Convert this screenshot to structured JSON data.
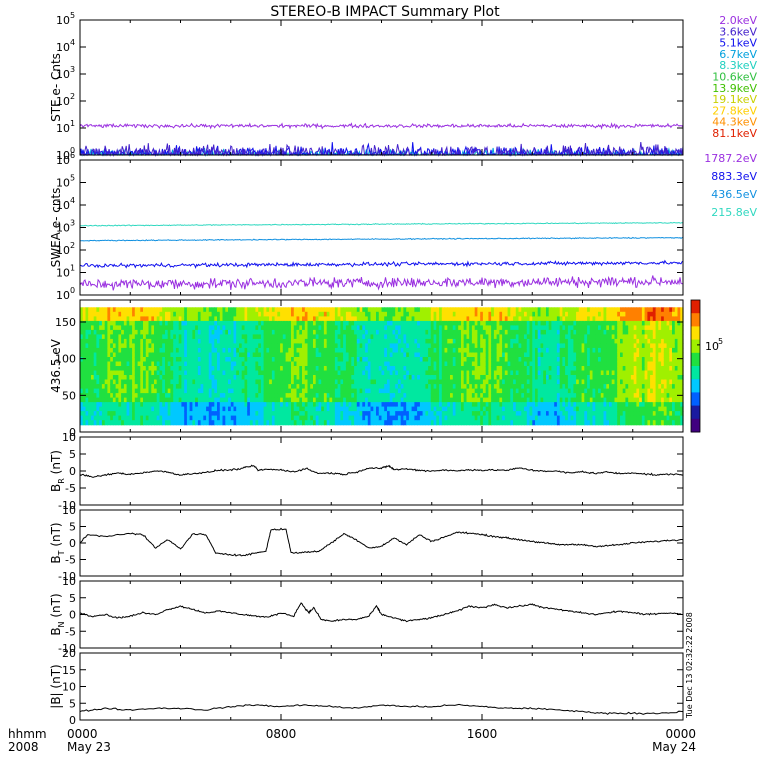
{
  "title": "STEREO-B IMPACT Summary Plot",
  "timestamp": "Tue Dec 13 02:32:22 2008",
  "x_axis": {
    "row1_label": "hhmm",
    "row2_label": "2008",
    "ticks": [
      {
        "hour": 0,
        "hhmm": "0000",
        "date": "May 23"
      },
      {
        "hour": 8,
        "hhmm": "0800",
        "date": ""
      },
      {
        "hour": 16,
        "hhmm": "1600",
        "date": ""
      },
      {
        "hour": 24,
        "hhmm": "0000",
        "date": "May 24"
      }
    ]
  },
  "colors": {
    "ste_spectrogram": "rainbow",
    "field_line": "#000000"
  },
  "chart_data": [
    {
      "id": "ste",
      "type": "line",
      "ylabel": "STE e- Cnts",
      "yscale": "log",
      "ylim": [
        1,
        100000
      ],
      "ytick_exponents": [
        0,
        1,
        2,
        3,
        4,
        5
      ],
      "ytick_base": "10",
      "series": [
        {
          "name": "2.0keV",
          "color": "#9a30e0",
          "level": 12,
          "noise": 0.1
        },
        {
          "name": "3.6keV",
          "color": "#4422cc",
          "level": 1.2,
          "noise": 0.45
        },
        {
          "name": "5.1keV",
          "color": "#1010ee",
          "level": 1.1,
          "noise": 0.45
        },
        {
          "name": "6.7keV",
          "color": "#00a0dd",
          "level": 1.0,
          "noise": 0.3
        },
        {
          "name": "8.3keV",
          "color": "#20d0c0",
          "level": 1.0,
          "noise": 0.2
        },
        {
          "name": "10.6keV",
          "color": "#30c040",
          "level": 1.0,
          "noise": 0.0
        },
        {
          "name": "13.9keV",
          "color": "#40c000",
          "level": 1.0,
          "noise": 0.0
        },
        {
          "name": "19.1keV",
          "color": "#c8d000",
          "level": 1.0,
          "noise": 0.0
        },
        {
          "name": "27.8keV",
          "color": "#ffd000",
          "level": 1.0,
          "noise": 0.0
        },
        {
          "name": "44.3keV",
          "color": "#ff9000",
          "level": 1.0,
          "noise": 0.0
        },
        {
          "name": "81.1keV",
          "color": "#e02000",
          "level": 1.0,
          "noise": 0.0
        }
      ]
    },
    {
      "id": "swea",
      "type": "line",
      "ylabel": "SWEA e- cnts",
      "yscale": "log",
      "ylim": [
        1,
        1000000
      ],
      "ytick_exponents": [
        0,
        1,
        2,
        3,
        4,
        5,
        6
      ],
      "ytick_base": "10",
      "series": [
        {
          "name": "1787.2eV",
          "color": "#9a30e0",
          "level": 3,
          "noise": 0.35
        },
        {
          "name": "883.3eV",
          "color": "#1010ee",
          "level": 20,
          "noise": 0.12
        },
        {
          "name": "436.5eV",
          "color": "#1090e0",
          "level": 260,
          "noise": 0.03
        },
        {
          "name": "215.8eV",
          "color": "#30d8c0",
          "level": 1200,
          "noise": 0.03
        }
      ]
    },
    {
      "id": "pad",
      "type": "heatmap",
      "ylabel": "436.5 eV",
      "ylim": [
        0,
        180
      ],
      "yticks": [
        0,
        50,
        100,
        150
      ],
      "colorbar_label": "10",
      "colorbar_exp": "5"
    },
    {
      "id": "br",
      "type": "line",
      "ylabel": "B",
      "ylabel_sub": "R",
      "ylabel_unit": "(nT)",
      "ylim": [
        -10,
        10
      ],
      "yticks": [
        -10,
        -5,
        0,
        5,
        10
      ],
      "points": [
        [
          0,
          -1
        ],
        [
          0.5,
          -1.8
        ],
        [
          1,
          -1.2
        ],
        [
          1.5,
          -0.6
        ],
        [
          2,
          -1.0
        ],
        [
          2.5,
          -0.5
        ],
        [
          3,
          0
        ],
        [
          3.5,
          -0.3
        ],
        [
          4,
          -1.2
        ],
        [
          4.5,
          -0.7
        ],
        [
          5,
          -0.5
        ],
        [
          5.5,
          0.2
        ],
        [
          6,
          0.3
        ],
        [
          6.5,
          0.8
        ],
        [
          6.9,
          1.6
        ],
        [
          7.1,
          0.2
        ],
        [
          7.5,
          0.5
        ],
        [
          8,
          0.3
        ],
        [
          8.5,
          -0.2
        ],
        [
          9,
          0.7
        ],
        [
          9.5,
          -0.7
        ],
        [
          10,
          -0.6
        ],
        [
          10.5,
          -1.0
        ],
        [
          11,
          -0.3
        ],
        [
          11.5,
          0.9
        ],
        [
          12,
          0.8
        ],
        [
          12.3,
          1.5
        ],
        [
          12.5,
          0.4
        ],
        [
          13,
          0.6
        ],
        [
          13.5,
          0.2
        ],
        [
          14,
          0.0
        ],
        [
          14.5,
          0.3
        ],
        [
          15,
          0.0
        ],
        [
          15.5,
          0.4
        ],
        [
          16,
          0.2
        ],
        [
          16.5,
          0.3
        ],
        [
          17,
          0.2
        ],
        [
          17.5,
          0.9
        ],
        [
          18,
          0.2
        ],
        [
          18.5,
          0.0
        ],
        [
          19,
          -0.1
        ],
        [
          19.5,
          -0.6
        ],
        [
          20,
          -0.2
        ],
        [
          20.5,
          -0.7
        ],
        [
          21,
          -0.3
        ],
        [
          21.5,
          -0.8
        ],
        [
          22,
          -0.5
        ],
        [
          22.5,
          -0.9
        ],
        [
          23,
          -1.2
        ],
        [
          23.5,
          -0.9
        ],
        [
          24,
          -1.1
        ]
      ]
    },
    {
      "id": "bt",
      "type": "line",
      "ylabel": "B",
      "ylabel_sub": "T",
      "ylabel_unit": "(nT)",
      "ylim": [
        -10,
        10
      ],
      "yticks": [
        -10,
        -5,
        0,
        5,
        10
      ],
      "points": [
        [
          0,
          0
        ],
        [
          0.3,
          2.5
        ],
        [
          1,
          2.0
        ],
        [
          2,
          3.0
        ],
        [
          2.5,
          2.5
        ],
        [
          3,
          -1.5
        ],
        [
          3.5,
          1.0
        ],
        [
          4,
          -1.8
        ],
        [
          4.5,
          2.8
        ],
        [
          5,
          2.5
        ],
        [
          5.4,
          -3.0
        ],
        [
          6,
          -3.5
        ],
        [
          6.5,
          -3.8
        ],
        [
          7,
          -3.0
        ],
        [
          7.4,
          -2.5
        ],
        [
          7.6,
          4.0
        ],
        [
          8.2,
          4.2
        ],
        [
          8.4,
          -3.0
        ],
        [
          9,
          -2.8
        ],
        [
          9.5,
          -2.5
        ],
        [
          10,
          0.0
        ],
        [
          10.5,
          2.8
        ],
        [
          11,
          1.0
        ],
        [
          11.5,
          -1.5
        ],
        [
          12,
          -1.0
        ],
        [
          12.5,
          1.5
        ],
        [
          13,
          -0.5
        ],
        [
          13.5,
          2.5
        ],
        [
          14,
          0.5
        ],
        [
          14.5,
          1.8
        ],
        [
          15,
          3.2
        ],
        [
          15.5,
          3.0
        ],
        [
          16,
          2.5
        ],
        [
          16.5,
          2.0
        ],
        [
          17,
          1.5
        ],
        [
          17.5,
          1.0
        ],
        [
          18,
          0.5
        ],
        [
          18.5,
          0.0
        ],
        [
          19,
          -0.5
        ],
        [
          19.5,
          -0.5
        ],
        [
          20,
          -0.5
        ],
        [
          20.5,
          -1.0
        ],
        [
          21,
          -0.8
        ],
        [
          21.5,
          -0.5
        ],
        [
          22,
          0.0
        ],
        [
          22.5,
          0.3
        ],
        [
          23,
          0.5
        ],
        [
          23.5,
          0.8
        ],
        [
          24,
          1.0
        ]
      ]
    },
    {
      "id": "bn",
      "type": "line",
      "ylabel": "B",
      "ylabel_sub": "N",
      "ylabel_unit": "(nT)",
      "ylim": [
        -10,
        10
      ],
      "yticks": [
        -10,
        -5,
        0,
        5,
        10
      ],
      "points": [
        [
          0,
          0.5
        ],
        [
          0.5,
          -0.5
        ],
        [
          1,
          0.0
        ],
        [
          1.5,
          -1.0
        ],
        [
          2,
          -0.5
        ],
        [
          2.5,
          0.5
        ],
        [
          3,
          0.0
        ],
        [
          3.5,
          1.5
        ],
        [
          4,
          2.5
        ],
        [
          4.5,
          1.5
        ],
        [
          5,
          0.5
        ],
        [
          5.5,
          1.0
        ],
        [
          6,
          0.5
        ],
        [
          6.5,
          0.0
        ],
        [
          7,
          -0.5
        ],
        [
          7.5,
          -0.8
        ],
        [
          8,
          0.5
        ],
        [
          8.5,
          -0.5
        ],
        [
          8.8,
          3.5
        ],
        [
          9.1,
          0.5
        ],
        [
          9.3,
          2.0
        ],
        [
          9.6,
          -1.5
        ],
        [
          10,
          -2.0
        ],
        [
          10.5,
          -1.5
        ],
        [
          11,
          -1.5
        ],
        [
          11.5,
          -0.5
        ],
        [
          11.8,
          2.5
        ],
        [
          12,
          0.0
        ],
        [
          12.5,
          -1.0
        ],
        [
          13,
          -2.0
        ],
        [
          13.5,
          -1.5
        ],
        [
          14,
          -1.0
        ],
        [
          14.5,
          0.0
        ],
        [
          15,
          1.0
        ],
        [
          15.5,
          2.5
        ],
        [
          16,
          2.0
        ],
        [
          16.5,
          3.0
        ],
        [
          17,
          2.0
        ],
        [
          17.5,
          2.5
        ],
        [
          18,
          3.0
        ],
        [
          18.5,
          2.0
        ],
        [
          19,
          1.5
        ],
        [
          19.5,
          1.0
        ],
        [
          20,
          0.5
        ],
        [
          20.5,
          0.0
        ],
        [
          21,
          0.5
        ],
        [
          21.5,
          1.0
        ],
        [
          22,
          0.5
        ],
        [
          22.5,
          0.0
        ],
        [
          23,
          0.3
        ],
        [
          23.5,
          0.5
        ],
        [
          24,
          0.0
        ]
      ]
    },
    {
      "id": "bmag",
      "type": "line",
      "ylabel": "|B| (nT)",
      "ylim": [
        0,
        20
      ],
      "yticks": [
        0,
        5,
        10,
        15,
        20
      ],
      "points": [
        [
          0,
          2.5
        ],
        [
          1,
          3.5
        ],
        [
          2,
          3.0
        ],
        [
          3,
          3.5
        ],
        [
          4,
          3.5
        ],
        [
          5,
          3.0
        ],
        [
          6,
          4.0
        ],
        [
          7,
          4.5
        ],
        [
          8,
          4.0
        ],
        [
          9,
          4.5
        ],
        [
          10,
          4.0
        ],
        [
          11,
          3.5
        ],
        [
          12,
          4.5
        ],
        [
          13,
          4.0
        ],
        [
          14,
          4.0
        ],
        [
          15,
          4.5
        ],
        [
          16,
          4.0
        ],
        [
          17,
          3.5
        ],
        [
          18,
          3.5
        ],
        [
          19,
          3.0
        ],
        [
          20,
          2.5
        ],
        [
          21,
          2.0
        ],
        [
          22,
          2.0
        ],
        [
          23,
          2.0
        ],
        [
          24,
          2.5
        ]
      ]
    }
  ]
}
